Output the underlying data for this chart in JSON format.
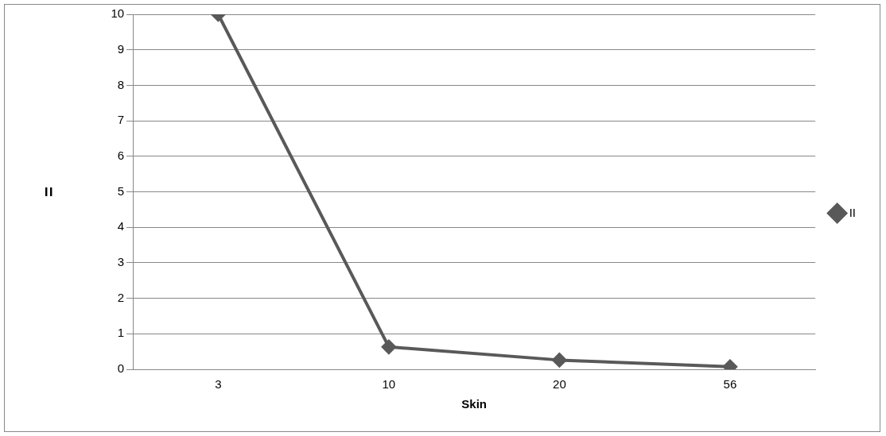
{
  "chart_data": {
    "type": "line",
    "xlabel": "Skin",
    "ylabel": "=",
    "categories": [
      "3",
      "10",
      "20",
      "56"
    ],
    "series": [
      {
        "name": "II",
        "color": "#595959",
        "values": [
          10,
          0.63,
          0.26,
          0.07
        ]
      }
    ],
    "ylim": [
      0,
      10
    ],
    "yticks": [
      0,
      1,
      2,
      3,
      4,
      5,
      6,
      7,
      8,
      9,
      10
    ],
    "grid": "y",
    "legend": "right",
    "marker": "diamond",
    "line_style": "solid"
  }
}
